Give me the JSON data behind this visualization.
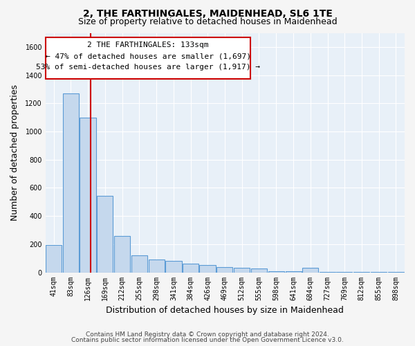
{
  "title1": "2, THE FARTHINGALES, MAIDENHEAD, SL6 1TE",
  "title2": "Size of property relative to detached houses in Maidenhead",
  "xlabel": "Distribution of detached houses by size in Maidenhead",
  "ylabel": "Number of detached properties",
  "footer1": "Contains HM Land Registry data © Crown copyright and database right 2024.",
  "footer2": "Contains public sector information licensed under the Open Government Licence v3.0.",
  "annotation_line1": "2 THE FARTHINGALES: 133sqm",
  "annotation_line2": "← 47% of detached houses are smaller (1,697)",
  "annotation_line3": "53% of semi-detached houses are larger (1,917) →",
  "bar_color": "#c5d8ed",
  "bar_edge_color": "#5b9bd5",
  "red_line_color": "#cc0000",
  "red_line_x": 133,
  "ylim": [
    0,
    1700
  ],
  "yticks": [
    0,
    200,
    400,
    600,
    800,
    1000,
    1200,
    1400,
    1600
  ],
  "categories": [
    41,
    83,
    126,
    169,
    212,
    255,
    298,
    341,
    384,
    426,
    469,
    512,
    555,
    598,
    641,
    684,
    727,
    769,
    812,
    855,
    898
  ],
  "labels": [
    "41sqm",
    "83sqm",
    "126sqm",
    "169sqm",
    "212sqm",
    "255sqm",
    "298sqm",
    "341sqm",
    "384sqm",
    "426sqm",
    "469sqm",
    "512sqm",
    "555sqm",
    "598sqm",
    "641sqm",
    "684sqm",
    "727sqm",
    "769sqm",
    "812sqm",
    "855sqm",
    "898sqm"
  ],
  "values": [
    195,
    1270,
    1100,
    545,
    260,
    120,
    90,
    82,
    60,
    52,
    38,
    32,
    28,
    10,
    8,
    30,
    5,
    3,
    2,
    1,
    1
  ],
  "background_color": "#e8f0f8",
  "grid_color": "#ffffff",
  "fig_background": "#f5f5f5",
  "annotation_box_facecolor": "#ffffff",
  "annotation_box_edgecolor": "#cc0000",
  "ann_fontsize": 8,
  "title1_fontsize": 10,
  "title2_fontsize": 9,
  "xlabel_fontsize": 9,
  "ylabel_fontsize": 9,
  "footer_fontsize": 6.5,
  "tick_fontsize": 7
}
